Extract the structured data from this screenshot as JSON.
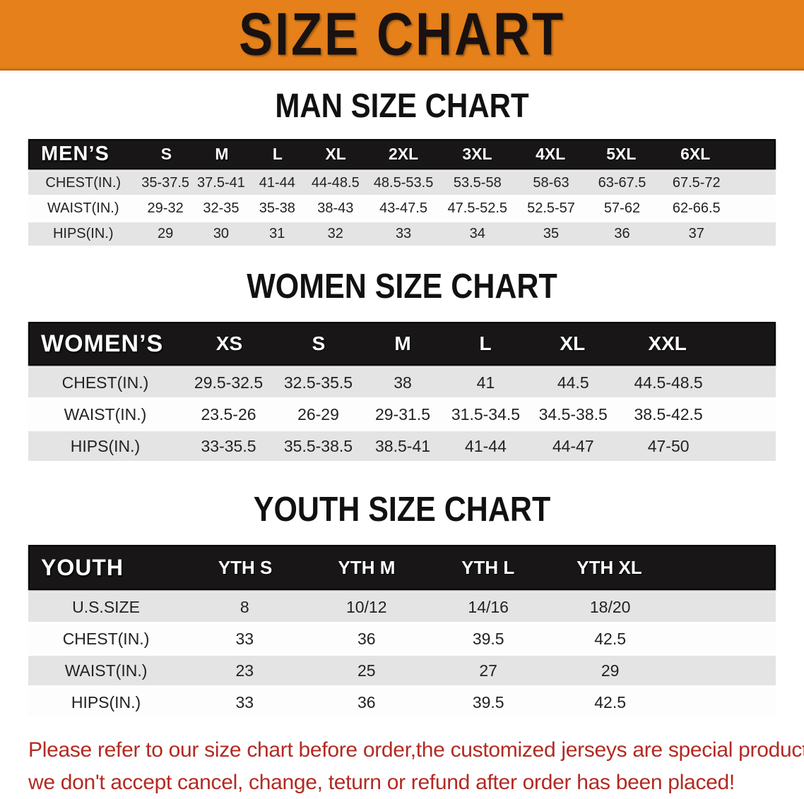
{
  "banner": {
    "title": "SIZE CHART"
  },
  "colors": {
    "banner_bg": "#e5801b",
    "header_bg": "#181616",
    "row_alt_bg": "#e4e4e4",
    "disclaimer_red": "#b22a22"
  },
  "sections": [
    {
      "title": "MAN SIZE CHART",
      "header_label": "MEN’S",
      "columns": [
        "S",
        "M",
        "L",
        "XL",
        "2XL",
        "3XL",
        "4XL",
        "5XL",
        "6XL"
      ],
      "rows": [
        {
          "label": "CHEST(IN.)",
          "values": [
            "35-37.5",
            "37.5-41",
            "41-44",
            "44-48.5",
            "48.5-53.5",
            "53.5-58",
            "58-63",
            "63-67.5",
            "67.5-72"
          ]
        },
        {
          "label": "WAIST(IN.)",
          "values": [
            "29-32",
            "32-35",
            "35-38",
            "38-43",
            "43-47.5",
            "47.5-52.5",
            "52.5-57",
            "57-62",
            "62-66.5"
          ]
        },
        {
          "label": "HIPS(IN.)",
          "values": [
            "29",
            "30",
            "31",
            "32",
            "33",
            "34",
            "35",
            "36",
            "37"
          ]
        }
      ]
    },
    {
      "title": "WOMEN SIZE CHART",
      "header_label": "WOMEN’S",
      "columns": [
        "XS",
        "S",
        "M",
        "L",
        "XL",
        "XXL"
      ],
      "rows": [
        {
          "label": "CHEST(IN.)",
          "values": [
            "29.5-32.5",
            "32.5-35.5",
            "38",
            "41",
            "44.5",
            "44.5-48.5"
          ]
        },
        {
          "label": "WAIST(IN.)",
          "values": [
            "23.5-26",
            "26-29",
            "29-31.5",
            "31.5-34.5",
            "34.5-38.5",
            "38.5-42.5"
          ]
        },
        {
          "label": "HIPS(IN.)",
          "values": [
            "33-35.5",
            "35.5-38.5",
            "38.5-41",
            "41-44",
            "44-47",
            "47-50"
          ]
        }
      ]
    },
    {
      "title": "YOUTH SIZE CHART",
      "header_label": "YOUTH",
      "columns": [
        "YTH S",
        "YTH M",
        "YTH L",
        "YTH XL"
      ],
      "rows": [
        {
          "label": "U.S.SIZE",
          "values": [
            "8",
            "10/12",
            "14/16",
            "18/20"
          ]
        },
        {
          "label": "CHEST(IN.)",
          "values": [
            "33",
            "36",
            "39.5",
            "42.5"
          ]
        },
        {
          "label": "WAIST(IN.)",
          "values": [
            "23",
            "25",
            "27",
            "29"
          ]
        },
        {
          "label": "HIPS(IN.)",
          "values": [
            "33",
            "36",
            "39.5",
            "42.5"
          ]
        }
      ]
    }
  ],
  "disclaimer": {
    "line1": "Please refer to our size chart before order,the customized jerseys are special products,",
    "line2": "we don't accept cancel, change, teturn or refund after order has been placed!"
  }
}
